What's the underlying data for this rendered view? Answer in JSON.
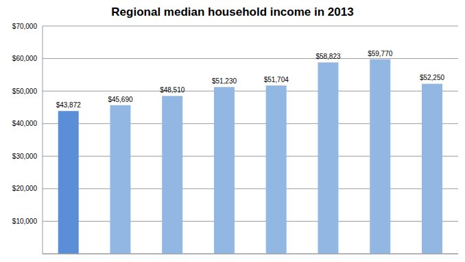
{
  "chart_data": {
    "type": "bar",
    "title": "Regional median household income in 2013",
    "categories": [
      null,
      null,
      null,
      null,
      null,
      null,
      null,
      null
    ],
    "values": [
      43872,
      45690,
      48510,
      51230,
      51704,
      58823,
      59770,
      52250
    ],
    "value_labels": [
      "$43,872",
      "$45,690",
      "$48,510",
      "$51,230",
      "$51,704",
      "$58,823",
      "$59,770",
      "$52,250"
    ],
    "data_labels": true,
    "colors": [
      "#5a8fd8",
      "#93b7e3",
      "#93b7e3",
      "#93b7e3",
      "#93b7e3",
      "#93b7e3",
      "#93b7e3",
      "#93b7e3"
    ],
    "ylim": [
      0,
      70000
    ],
    "yticks": [
      {
        "value": 10000,
        "label": "$10,000"
      },
      {
        "value": 20000,
        "label": "$20,000"
      },
      {
        "value": 30000,
        "label": "$30,000"
      },
      {
        "value": 40000,
        "label": "$40,000"
      },
      {
        "value": 50000,
        "label": "$50,000"
      },
      {
        "value": 60000,
        "label": "$60,000"
      },
      {
        "value": 70000,
        "label": "$70,000"
      }
    ],
    "grid": true,
    "tick_labels": "y"
  }
}
